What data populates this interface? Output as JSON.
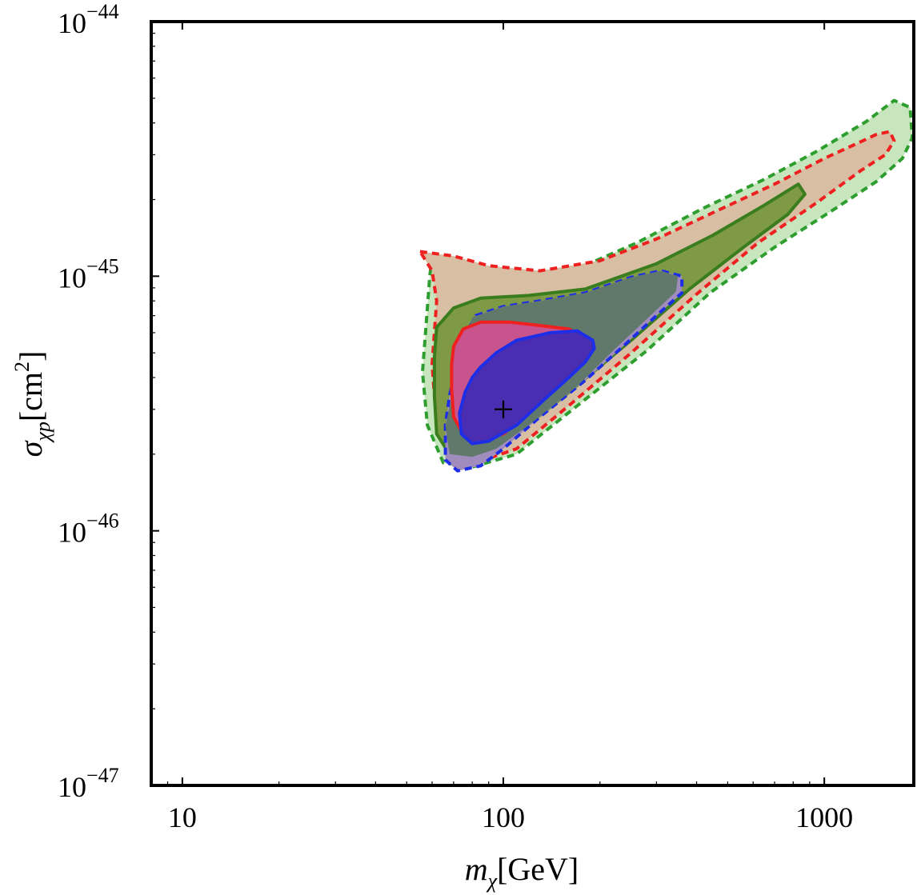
{
  "chart_data": {
    "type": "contour",
    "title": "",
    "xlabel": {
      "symbol": "m",
      "subscript": "χ",
      "unit": "[GeV]"
    },
    "ylabel": {
      "symbol": "σ",
      "subscript": "χp",
      "unit_prefix": "[cm",
      "unit_exp": "2",
      "unit_suffix": "]"
    },
    "x_scale": "log",
    "y_scale": "log",
    "xlim": [
      8,
      1900
    ],
    "ylim": [
      1e-47,
      1e-44
    ],
    "x_ticks": [
      {
        "value": 10,
        "label": "10"
      },
      {
        "value": 100,
        "label": "100"
      },
      {
        "value": 1000,
        "label": "1000"
      }
    ],
    "y_ticks": [
      {
        "value": 1e-47,
        "base": "10",
        "exp": "−47"
      },
      {
        "value": 1e-46,
        "base": "10",
        "exp": "−46"
      },
      {
        "value": 1e-45,
        "base": "10",
        "exp": "−45"
      },
      {
        "value": 1e-44,
        "base": "10",
        "exp": "−44"
      }
    ],
    "best_fit": {
      "x": 100,
      "y": 3e-46,
      "marker": "+"
    },
    "colors": {
      "green_fill": "#c7e6bd",
      "tan_fill": "#d8bfa3",
      "olive_fill": "#7f9a45",
      "teal_fill": "#61796b",
      "lavender_fill": "#a08dbd",
      "pink_fill": "#c8548e",
      "purple_fill": "#4a2db0",
      "green_line": "#2e9e2e",
      "dark_green_line": "#3a7d1e",
      "red_line": "#ee2020",
      "blue_line": "#1e2ee6",
      "frame": "#000000"
    },
    "regions": [
      {
        "name": "green-outer",
        "fill": "green_fill",
        "stroke": "green_line",
        "dash": true,
        "points": [
          [
            60,
            1.2e-45
          ],
          [
            80,
            1.05e-45
          ],
          [
            120,
            1.03e-45
          ],
          [
            170,
            1.07e-45
          ],
          [
            260,
            1.35e-45
          ],
          [
            420,
            1.85e-45
          ],
          [
            650,
            2.4e-45
          ],
          [
            950,
            3.1e-45
          ],
          [
            1350,
            4.05e-45
          ],
          [
            1650,
            4.9e-45
          ],
          [
            1850,
            4.6e-45
          ],
          [
            1880,
            3.5e-45
          ],
          [
            1750,
            2.9e-45
          ],
          [
            1450,
            2.35e-45
          ],
          [
            1050,
            1.8e-45
          ],
          [
            700,
            1.3e-45
          ],
          [
            440,
            8.6e-46
          ],
          [
            280,
            5.1e-46
          ],
          [
            170,
            3.1e-46
          ],
          [
            110,
            2e-46
          ],
          [
            80,
            1.78e-46
          ],
          [
            65,
            1.85e-46
          ],
          [
            58,
            2.6e-46
          ],
          [
            56,
            4.2e-46
          ],
          [
            58,
            7.5e-46
          ],
          [
            59,
            1e-45
          ]
        ]
      },
      {
        "name": "red-outer",
        "fill": "tan_fill",
        "stroke": "red_line",
        "dash": true,
        "points": [
          [
            55,
            1.25e-45
          ],
          [
            70,
            1.2e-45
          ],
          [
            90,
            1.1e-45
          ],
          [
            130,
            1.05e-45
          ],
          [
            200,
            1.15e-45
          ],
          [
            300,
            1.4e-45
          ],
          [
            460,
            1.8e-45
          ],
          [
            700,
            2.3e-45
          ],
          [
            1000,
            2.9e-45
          ],
          [
            1250,
            3.3e-45
          ],
          [
            1450,
            3.6e-45
          ],
          [
            1600,
            3.7e-45
          ],
          [
            1650,
            3.4e-45
          ],
          [
            1550,
            3e-45
          ],
          [
            1300,
            2.6e-45
          ],
          [
            950,
            1.95e-45
          ],
          [
            620,
            1.35e-45
          ],
          [
            400,
            8.5e-46
          ],
          [
            250,
            5e-46
          ],
          [
            160,
            3.1e-46
          ],
          [
            110,
            2.1e-46
          ],
          [
            82,
            1.85e-46
          ],
          [
            68,
            1.95e-46
          ],
          [
            62,
            2.6e-46
          ],
          [
            60,
            4.5e-46
          ],
          [
            62,
            8e-46
          ],
          [
            60,
            1.05e-45
          ]
        ]
      },
      {
        "name": "green-inner",
        "fill": "olive_fill",
        "stroke": "dark_green_line",
        "dash": false,
        "points": [
          [
            62,
            6.3e-46
          ],
          [
            70,
            7.5e-46
          ],
          [
            85,
            8.2e-46
          ],
          [
            120,
            8.4e-46
          ],
          [
            180,
            8.9e-46
          ],
          [
            300,
            1.12e-45
          ],
          [
            450,
            1.45e-45
          ],
          [
            650,
            1.9e-45
          ],
          [
            830,
            2.3e-45
          ],
          [
            870,
            2.1e-45
          ],
          [
            770,
            1.75e-45
          ],
          [
            560,
            1.3e-45
          ],
          [
            380,
            8.9e-46
          ],
          [
            250,
            5.6e-46
          ],
          [
            160,
            3.5e-46
          ],
          [
            110,
            2.4e-46
          ],
          [
            80,
            2e-46
          ],
          [
            68,
            2e-46
          ],
          [
            62,
            2.4e-46
          ],
          [
            61,
            3.4e-46
          ],
          [
            61,
            4.8e-46
          ]
        ]
      },
      {
        "name": "blue-outer",
        "fill": "lavender_fill",
        "stroke": "blue_line",
        "dash": true,
        "points": [
          [
            82,
            7e-46
          ],
          [
            100,
            7.6e-46
          ],
          [
            130,
            8e-46
          ],
          [
            180,
            8.6e-46
          ],
          [
            250,
            9.9e-46
          ],
          [
            310,
            1.05e-45
          ],
          [
            360,
            1e-45
          ],
          [
            360,
            8.6e-46
          ],
          [
            300,
            7e-46
          ],
          [
            240,
            5.4e-46
          ],
          [
            180,
            3.9e-46
          ],
          [
            130,
            2.8e-46
          ],
          [
            100,
            2.1e-46
          ],
          [
            85,
            1.8e-46
          ],
          [
            72,
            1.72e-46
          ],
          [
            66,
            1.9e-46
          ],
          [
            66,
            2.6e-46
          ],
          [
            68,
            3.4e-46
          ],
          [
            72,
            4.6e-46
          ],
          [
            77,
            6e-46
          ]
        ]
      },
      {
        "name": "teal-overlap",
        "fill": "teal_fill",
        "stroke": null,
        "dash": false,
        "points": [
          [
            80,
            6.9e-46
          ],
          [
            100,
            7.6e-46
          ],
          [
            130,
            8e-46
          ],
          [
            180,
            8.6e-46
          ],
          [
            250,
            9.9e-46
          ],
          [
            310,
            1.05e-45
          ],
          [
            350,
            1e-45
          ],
          [
            345,
            8.7e-46
          ],
          [
            280,
            6.8e-46
          ],
          [
            220,
            5.1e-46
          ],
          [
            170,
            3.7e-46
          ],
          [
            120,
            2.6e-46
          ],
          [
            95,
            2.1e-46
          ],
          [
            80,
            1.95e-46
          ],
          [
            68,
            2e-46
          ],
          [
            66,
            2.6e-46
          ],
          [
            70,
            3.6e-46
          ],
          [
            74,
            5e-46
          ]
        ]
      },
      {
        "name": "red-inner",
        "fill": "pink_fill",
        "stroke": "red_line",
        "dash": false,
        "points": [
          [
            70,
            5.3e-46
          ],
          [
            75,
            6.2e-46
          ],
          [
            85,
            6.6e-46
          ],
          [
            105,
            6.6e-46
          ],
          [
            130,
            6.4e-46
          ],
          [
            160,
            6.2e-46
          ],
          [
            185,
            5.6e-46
          ],
          [
            170,
            4.6e-46
          ],
          [
            145,
            3.7e-46
          ],
          [
            120,
            2.9e-46
          ],
          [
            100,
            2.4e-46
          ],
          [
            85,
            2.3e-46
          ],
          [
            75,
            2.4e-46
          ],
          [
            70,
            2.8e-46
          ],
          [
            69,
            3.6e-46
          ],
          [
            69,
            4.5e-46
          ]
        ]
      },
      {
        "name": "blue-inner",
        "fill": "purple_fill",
        "stroke": "blue_line",
        "dash": false,
        "points": [
          [
            85,
            4.4e-46
          ],
          [
            95,
            5e-46
          ],
          [
            110,
            5.6e-46
          ],
          [
            140,
            6e-46
          ],
          [
            170,
            6.1e-46
          ],
          [
            190,
            5.6e-46
          ],
          [
            192,
            5.2e-46
          ],
          [
            180,
            4.6e-46
          ],
          [
            160,
            4e-46
          ],
          [
            135,
            3.3e-46
          ],
          [
            110,
            2.6e-46
          ],
          [
            90,
            2.25e-46
          ],
          [
            80,
            2.2e-46
          ],
          [
            74,
            2.4e-46
          ],
          [
            73,
            2.9e-46
          ],
          [
            76,
            3.5e-46
          ],
          [
            80,
            4e-46
          ]
        ]
      }
    ]
  }
}
